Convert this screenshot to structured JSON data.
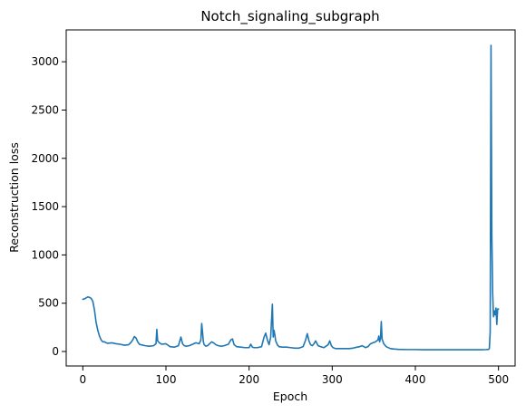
{
  "chart_data": {
    "type": "line",
    "title": "Notch_signaling_subgraph",
    "xlabel": "Epoch",
    "ylabel": "Reconstruction loss",
    "xlim": [
      -20,
      520
    ],
    "ylim": [
      -150,
      3330
    ],
    "x_ticks": [
      0,
      100,
      200,
      300,
      400,
      500
    ],
    "x_tick_labels": [
      "0",
      "100",
      "200",
      "300",
      "400",
      "500"
    ],
    "y_ticks": [
      0,
      500,
      1000,
      1500,
      2000,
      2500,
      3000
    ],
    "y_tick_labels": [
      "0",
      "500",
      "1000",
      "1500",
      "2000",
      "2500",
      "3000"
    ],
    "grid": false,
    "series": [
      {
        "color": "#1f77b4",
        "x": [
          0,
          2,
          4,
          6,
          8,
          10,
          12,
          14,
          16,
          18,
          20,
          22,
          24,
          26,
          28,
          30,
          35,
          40,
          45,
          50,
          55,
          58,
          60,
          62,
          64,
          66,
          68,
          70,
          75,
          80,
          85,
          88,
          89,
          90,
          92,
          95,
          100,
          105,
          110,
          115,
          118,
          120,
          122,
          124,
          128,
          132,
          136,
          140,
          142,
          143,
          144,
          145,
          146,
          148,
          150,
          155,
          158,
          160,
          163,
          166,
          170,
          175,
          178,
          180,
          182,
          185,
          190,
          195,
          200,
          202,
          204,
          206,
          210,
          215,
          218,
          220,
          222,
          224,
          226,
          228,
          229,
          230,
          231,
          232,
          234,
          236,
          240,
          245,
          250,
          255,
          260,
          265,
          268,
          270,
          272,
          274,
          276,
          278,
          280,
          283,
          286,
          290,
          295,
          297,
          299,
          301,
          304,
          310,
          315,
          320,
          325,
          330,
          333,
          336,
          340,
          343,
          346,
          349,
          352,
          355,
          356,
          357,
          358,
          359,
          360,
          362,
          365,
          370,
          375,
          380,
          390,
          400,
          410,
          420,
          430,
          440,
          450,
          460,
          470,
          480,
          485,
          488,
          489,
          490,
          491,
          492,
          493,
          494,
          495,
          496,
          497,
          498,
          499,
          500
        ],
        "y": [
          540,
          545,
          555,
          565,
          560,
          550,
          520,
          430,
          300,
          220,
          160,
          120,
          100,
          100,
          90,
          85,
          90,
          80,
          75,
          65,
          70,
          95,
          120,
          155,
          140,
          100,
          75,
          70,
          60,
          55,
          60,
          80,
          230,
          110,
          90,
          75,
          80,
          50,
          45,
          60,
          150,
          80,
          60,
          55,
          60,
          75,
          90,
          80,
          120,
          290,
          200,
          100,
          70,
          55,
          60,
          100,
          85,
          70,
          60,
          55,
          60,
          75,
          120,
          130,
          70,
          50,
          45,
          40,
          40,
          75,
          45,
          40,
          40,
          50,
          150,
          190,
          120,
          70,
          150,
          490,
          150,
          220,
          170,
          110,
          70,
          50,
          45,
          45,
          40,
          35,
          35,
          50,
          120,
          185,
          110,
          70,
          60,
          80,
          110,
          60,
          50,
          40,
          70,
          110,
          60,
          40,
          30,
          30,
          30,
          30,
          35,
          45,
          50,
          60,
          40,
          50,
          80,
          90,
          100,
          120,
          160,
          100,
          130,
          310,
          130,
          80,
          50,
          30,
          25,
          22,
          20,
          20,
          18,
          18,
          18,
          18,
          18,
          18,
          18,
          18,
          20,
          22,
          30,
          200,
          3170,
          1200,
          600,
          360,
          420,
          380,
          450,
          280,
          440,
          440
        ]
      }
    ]
  }
}
